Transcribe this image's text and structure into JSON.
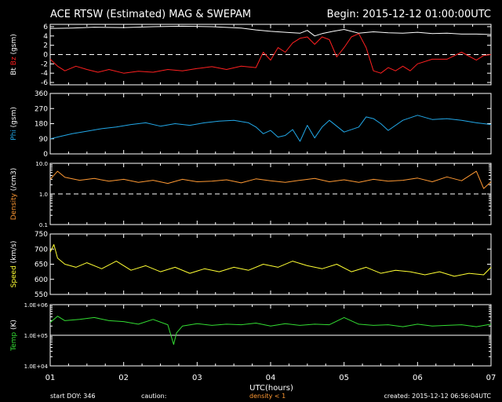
{
  "header": {
    "title": "ACE RTSW (Estimated) MAG & SWEPAM",
    "begin": "Begin: 2015-12-12 01:00:00UTC"
  },
  "footer": {
    "start_doy": "start DOY: 346",
    "caution": "caution:",
    "density_note": "density < 1",
    "created": "created: 2015-12-12 06:56:04UTC"
  },
  "colors": {
    "bt": "#ffffff",
    "bz": "#ff2020",
    "phi": "#22a8e8",
    "density": "#ff9933",
    "speed": "#ffff33",
    "temp": "#33dd33",
    "axes": "#ffffff"
  },
  "chart_data": {
    "type": "line",
    "xlabel": "UTC(hours)",
    "xlim": [
      1,
      7
    ],
    "x_ticks": [
      "01",
      "02",
      "03",
      "04",
      "05",
      "06",
      "07"
    ],
    "panels": [
      {
        "id": "mag",
        "ylabel_parts": [
          {
            "text": "Bt",
            "color": "#ffffff"
          },
          {
            "text": " ",
            "color": "#ffffff"
          },
          {
            "text": "Bz",
            "color": "#ff2020"
          },
          {
            "text": " (gsm)",
            "color": "#ffffff"
          }
        ],
        "ylim": [
          -6.5,
          6.5
        ],
        "scale": "linear",
        "y_ticks": [
          {
            "v": 6,
            "label": "6"
          },
          {
            "v": 4,
            "label": "4"
          },
          {
            "v": 2,
            "label": "2"
          },
          {
            "v": 0,
            "label": "0"
          },
          {
            "v": -2,
            "label": "-2"
          },
          {
            "v": -4,
            "label": "-4"
          },
          {
            "v": -6,
            "label": "-6"
          }
        ],
        "ref_line": 0,
        "ref_style": "dashed",
        "series": [
          {
            "name": "Bt",
            "color": "#ffffff",
            "x": [
              1.0,
              1.3,
              1.6,
              2.0,
              2.4,
              2.8,
              3.2,
              3.6,
              3.8,
              4.0,
              4.2,
              4.4,
              4.5,
              4.6,
              4.7,
              4.85,
              5.0,
              5.2,
              5.4,
              5.6,
              5.8,
              6.0,
              6.2,
              6.4,
              6.6,
              6.8,
              7.0
            ],
            "y": [
              5.6,
              5.7,
              5.9,
              5.8,
              6.0,
              6.1,
              6.0,
              5.7,
              5.3,
              5.0,
              4.8,
              4.6,
              5.2,
              4.0,
              4.5,
              5.0,
              5.4,
              4.6,
              4.9,
              4.7,
              4.6,
              4.8,
              4.5,
              4.6,
              4.4,
              4.4,
              4.3
            ]
          },
          {
            "name": "Bz",
            "color": "#ff2020",
            "x": [
              1.0,
              1.1,
              1.2,
              1.35,
              1.5,
              1.65,
              1.8,
              2.0,
              2.2,
              2.4,
              2.6,
              2.8,
              3.0,
              3.2,
              3.4,
              3.6,
              3.8,
              3.9,
              4.0,
              4.1,
              4.2,
              4.3,
              4.4,
              4.5,
              4.6,
              4.7,
              4.8,
              4.9,
              5.0,
              5.1,
              5.2,
              5.3,
              5.4,
              5.5,
              5.6,
              5.7,
              5.8,
              5.9,
              6.0,
              6.2,
              6.4,
              6.6,
              6.8,
              6.9,
              7.0
            ],
            "y": [
              -1.0,
              -2.5,
              -3.5,
              -2.5,
              -3.2,
              -3.8,
              -3.2,
              -4.0,
              -3.6,
              -3.8,
              -3.2,
              -3.5,
              -3.0,
              -2.6,
              -3.2,
              -2.5,
              -2.8,
              0.5,
              -1.2,
              1.5,
              0.5,
              2.5,
              3.5,
              3.8,
              2.2,
              3.8,
              3.2,
              -0.5,
              1.5,
              3.8,
              4.5,
              1.5,
              -3.5,
              -4.0,
              -2.8,
              -3.5,
              -2.5,
              -3.5,
              -2.0,
              -1.0,
              -1.0,
              0.5,
              -1.2,
              -0.2,
              0.0
            ]
          }
        ]
      },
      {
        "id": "phi",
        "ylabel_parts": [
          {
            "text": "Phi",
            "color": "#22a8e8"
          },
          {
            "text": " (gsm)",
            "color": "#ffffff"
          }
        ],
        "ylim": [
          0,
          360
        ],
        "scale": "linear",
        "y_ticks": [
          {
            "v": 360,
            "label": "360"
          },
          {
            "v": 270,
            "label": "270"
          },
          {
            "v": 180,
            "label": "180"
          },
          {
            "v": 90,
            "label": "90"
          },
          {
            "v": 0,
            "label": "0"
          }
        ],
        "series": [
          {
            "name": "Phi",
            "color": "#22a8e8",
            "x": [
              1.0,
              1.15,
              1.3,
              1.5,
              1.7,
              1.9,
              2.1,
              2.3,
              2.5,
              2.7,
              2.9,
              3.1,
              3.3,
              3.5,
              3.7,
              3.8,
              3.9,
              4.0,
              4.1,
              4.2,
              4.3,
              4.4,
              4.5,
              4.6,
              4.7,
              4.8,
              5.0,
              5.2,
              5.3,
              5.4,
              5.5,
              5.6,
              5.8,
              6.0,
              6.2,
              6.4,
              6.6,
              6.8,
              7.0
            ],
            "y": [
              90,
              105,
              120,
              135,
              150,
              160,
              175,
              185,
              165,
              180,
              170,
              185,
              195,
              200,
              185,
              160,
              120,
              140,
              100,
              110,
              145,
              75,
              170,
              95,
              160,
              200,
              130,
              160,
              220,
              210,
              180,
              140,
              200,
              230,
              205,
              210,
              200,
              185,
              175
            ]
          }
        ]
      },
      {
        "id": "density",
        "ylabel_parts": [
          {
            "text": "Density",
            "color": "#ff9933"
          },
          {
            "text": " (/cm3)",
            "color": "#ffffff"
          }
        ],
        "ylim": [
          0.1,
          10
        ],
        "scale": "log",
        "y_ticks": [
          {
            "v": 10,
            "label": "10.0"
          },
          {
            "v": 1,
            "label": "1.0"
          },
          {
            "v": 0.1,
            "label": "0.1"
          }
        ],
        "ref_line": 1,
        "ref_style": "dashed",
        "series": [
          {
            "name": "Density",
            "color": "#ff9933",
            "x": [
              1.0,
              1.1,
              1.2,
              1.4,
              1.6,
              1.8,
              2.0,
              2.2,
              2.4,
              2.6,
              2.8,
              3.0,
              3.2,
              3.4,
              3.6,
              3.8,
              4.0,
              4.2,
              4.4,
              4.6,
              4.8,
              5.0,
              5.2,
              5.4,
              5.6,
              5.8,
              6.0,
              6.2,
              6.4,
              6.6,
              6.8,
              6.9,
              7.0
            ],
            "y": [
              3.0,
              5.5,
              3.5,
              2.8,
              3.2,
              2.6,
              3.0,
              2.4,
              2.8,
              2.2,
              3.0,
              2.5,
              2.6,
              2.9,
              2.3,
              3.1,
              2.7,
              2.4,
              2.8,
              3.2,
              2.5,
              2.9,
              2.4,
              3.0,
              2.6,
              2.8,
              3.3,
              2.5,
              3.6,
              2.7,
              5.5,
              1.5,
              2.5
            ]
          }
        ]
      },
      {
        "id": "speed",
        "ylabel_parts": [
          {
            "text": "Speed",
            "color": "#ffff33"
          },
          {
            "text": " (km/s)",
            "color": "#ffffff"
          }
        ],
        "ylim": [
          550,
          750
        ],
        "scale": "linear",
        "y_ticks": [
          {
            "v": 750,
            "label": "750"
          },
          {
            "v": 700,
            "label": "700"
          },
          {
            "v": 650,
            "label": "650"
          },
          {
            "v": 600,
            "label": "600"
          },
          {
            "v": 550,
            "label": "550"
          }
        ],
        "series": [
          {
            "name": "Speed",
            "color": "#ffff33",
            "x": [
              1.0,
              1.05,
              1.1,
              1.2,
              1.35,
              1.5,
              1.7,
              1.9,
              2.1,
              2.3,
              2.5,
              2.7,
              2.9,
              3.1,
              3.3,
              3.5,
              3.7,
              3.9,
              4.1,
              4.3,
              4.5,
              4.7,
              4.9,
              5.1,
              5.3,
              5.5,
              5.7,
              5.9,
              6.1,
              6.3,
              6.5,
              6.7,
              6.9,
              7.0
            ],
            "y": [
              690,
              715,
              670,
              650,
              640,
              655,
              635,
              660,
              630,
              645,
              625,
              640,
              620,
              635,
              625,
              640,
              630,
              650,
              640,
              660,
              645,
              635,
              650,
              625,
              640,
              620,
              630,
              625,
              615,
              625,
              610,
              620,
              615,
              640
            ]
          }
        ]
      },
      {
        "id": "temp",
        "ylabel_parts": [
          {
            "text": "Temp",
            "color": "#33dd33"
          },
          {
            "text": " (K)",
            "color": "#ffffff"
          }
        ],
        "ylim": [
          10000,
          1000000
        ],
        "scale": "log",
        "y_ticks": [
          {
            "v": 1000000,
            "label": "1.0E+06"
          },
          {
            "v": 100000,
            "label": "1.0E+05"
          },
          {
            "v": 10000,
            "label": "1.0E+04"
          }
        ],
        "ref_line": 100000,
        "ref_style": "solid",
        "series": [
          {
            "name": "Temp",
            "color": "#33dd33",
            "x": [
              1.0,
              1.1,
              1.2,
              1.4,
              1.6,
              1.8,
              2.0,
              2.2,
              2.4,
              2.6,
              2.68,
              2.72,
              2.8,
              3.0,
              3.2,
              3.4,
              3.6,
              3.8,
              4.0,
              4.2,
              4.4,
              4.6,
              4.8,
              5.0,
              5.2,
              5.4,
              5.6,
              5.8,
              6.0,
              6.2,
              6.4,
              6.6,
              6.8,
              7.0
            ],
            "y": [
              260000,
              420000,
              300000,
              330000,
              380000,
              300000,
              280000,
              230000,
              330000,
              220000,
              50000,
              120000,
              200000,
              240000,
              210000,
              230000,
              220000,
              250000,
              200000,
              240000,
              210000,
              230000,
              220000,
              380000,
              230000,
              210000,
              220000,
              190000,
              230000,
              200000,
              210000,
              220000,
              190000,
              230000
            ]
          }
        ]
      }
    ]
  }
}
